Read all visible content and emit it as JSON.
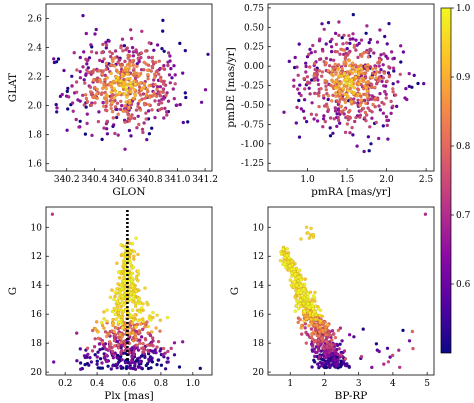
{
  "chart_data": [
    {
      "type": "scatter",
      "panel": "top-left",
      "xlabel": "GLON",
      "ylabel": "GLAT",
      "xlim": [
        340.05,
        341.25
      ],
      "ylim": [
        1.55,
        2.7
      ],
      "xticks": [
        "340.2",
        "340.4",
        "340.6",
        "340.8",
        "341.0",
        "341.2"
      ],
      "yticks": [
        "1.6",
        "1.8",
        "2.0",
        "2.2",
        "2.4",
        "2.6"
      ],
      "distribution": {
        "center": [
          340.62,
          2.14
        ],
        "spread": [
          0.2,
          0.16
        ],
        "count": 600
      },
      "color_by": "membership probability (0.5–1.0)"
    },
    {
      "type": "scatter",
      "panel": "top-right",
      "xlabel": "pmRA [mas/yr]",
      "ylabel": "pmDE [mas/yr]",
      "xlim": [
        0.5,
        2.6
      ],
      "ylim": [
        -1.35,
        0.8
      ],
      "xticks": [
        "1.0",
        "1.5",
        "2.0",
        "2.5"
      ],
      "yticks": [
        "0.75",
        "0.50",
        "0.25",
        "0.00",
        "-0.25",
        "-0.50",
        "-0.75",
        "-1.00",
        "-1.25"
      ],
      "distribution": {
        "center": [
          1.55,
          -0.2
        ],
        "spread": [
          0.32,
          0.3
        ],
        "count": 600
      },
      "color_by": "membership probability (0.5–1.0)"
    },
    {
      "type": "scatter",
      "panel": "bottom-left",
      "xlabel": "Plx [mas]",
      "ylabel": "G",
      "xlim": [
        0.08,
        1.12
      ],
      "ylim": [
        20.2,
        8.6
      ],
      "xticks": [
        "0.2",
        "0.4",
        "0.6",
        "0.8",
        "1.0"
      ],
      "yticks": [
        "10",
        "12",
        "14",
        "16",
        "18",
        "20"
      ],
      "y_inverted": true,
      "reference_line": {
        "x": 0.59,
        "style": "dotted",
        "color": "#000000"
      },
      "outlier": {
        "x": 0.12,
        "y": 9.1
      },
      "color_by": "membership probability (0.5–1.0)"
    },
    {
      "type": "scatter",
      "panel": "bottom-right",
      "xlabel": "BP-RP",
      "ylabel": "G",
      "xlim": [
        0.35,
        5.2
      ],
      "ylim": [
        20.2,
        8.6
      ],
      "xticks": [
        "1",
        "2",
        "3",
        "4",
        "5"
      ],
      "yticks": [
        "10",
        "12",
        "14",
        "16",
        "18",
        "20"
      ],
      "y_inverted": true,
      "sequence": "main sequence from (0.7, 11.2) to (2.4, 19.6)",
      "outlier": {
        "x": 4.95,
        "y": 9.1
      },
      "color_by": "membership probability (0.5–1.0)"
    }
  ],
  "colorbar": {
    "colormap": "plasma",
    "range": [
      0.5,
      1.0
    ],
    "ticks": [
      "1.0",
      "0.9",
      "0.8",
      "0.7",
      "0.6"
    ],
    "tick_values": [
      1.0,
      0.9,
      0.8,
      0.7,
      0.6
    ]
  },
  "colors": {
    "low": "#2c0594",
    "mid": "#b52f8c",
    "high": "#f0f921"
  }
}
